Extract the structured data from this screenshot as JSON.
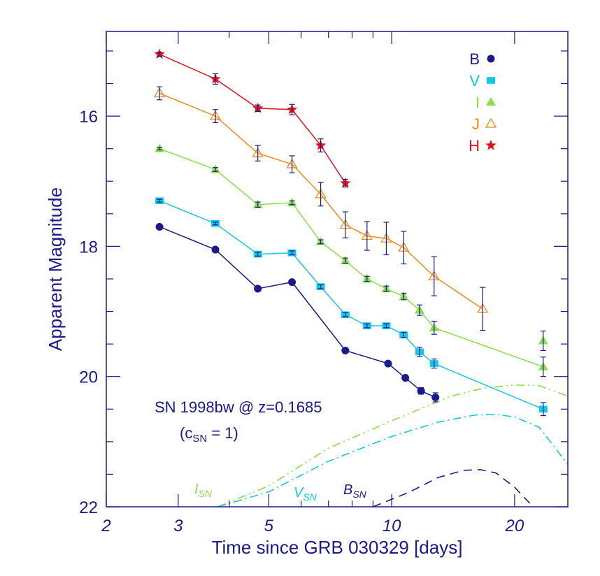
{
  "chart_data": {
    "type": "scatter",
    "title": "",
    "xlabel": "Time since GRB 030329 [days]",
    "ylabel": "Apparent Magnitude",
    "x_scale": "log",
    "xlim": [
      2,
      27
    ],
    "ylim": [
      22,
      14.7
    ],
    "y_inverted": true,
    "x_ticks": [
      2,
      3,
      5,
      10,
      20
    ],
    "x_tick_labels": [
      "2",
      "3",
      "5",
      "10",
      "20"
    ],
    "y_ticks": [
      16,
      18,
      20,
      22
    ],
    "y_tick_labels": [
      "16",
      "18",
      "20",
      "22"
    ],
    "legend_position": "top-right",
    "colors": {
      "axis": "#1a1a8c",
      "B": "#1a1a8c",
      "V": "#12c8e6",
      "I": "#88e048",
      "J": "#f28a1e",
      "H": "#e3101a"
    },
    "series": [
      {
        "name": "B",
        "marker": "circle",
        "color": "#1a1a8c",
        "x": [
          2.7,
          3.7,
          4.7,
          5.7,
          7.7,
          9.8,
          10.8,
          11.8,
          12.8
        ],
        "y": [
          17.7,
          18.05,
          18.65,
          18.55,
          19.6,
          19.8,
          20.02,
          20.22,
          20.32
        ],
        "err": [
          0.0,
          0.0,
          0.0,
          0.0,
          0.0,
          0.0,
          0.0,
          0.05,
          0.07
        ]
      },
      {
        "name": "V",
        "marker": "square",
        "color": "#12c8e6",
        "x": [
          2.7,
          3.7,
          4.7,
          5.7,
          6.7,
          7.7,
          8.7,
          9.7,
          10.7,
          11.7,
          12.7,
          23.5
        ],
        "y": [
          17.3,
          17.65,
          18.12,
          18.1,
          18.62,
          19.05,
          19.22,
          19.22,
          19.36,
          19.62,
          19.8,
          20.5
        ],
        "err": [
          0.02,
          0.02,
          0.03,
          0.03,
          0.03,
          0.03,
          0.03,
          0.03,
          0.04,
          0.07,
          0.07,
          0.1
        ]
      },
      {
        "name": "I",
        "marker": "triangle",
        "color": "#88e048",
        "x": [
          2.7,
          3.7,
          4.7,
          5.7,
          6.7,
          7.7,
          8.7,
          9.7,
          10.7,
          11.7,
          12.7,
          23.5
        ],
        "y": [
          16.5,
          16.82,
          17.36,
          17.33,
          17.93,
          18.22,
          18.5,
          18.65,
          18.77,
          18.98,
          19.25,
          19.85
        ],
        "err": [
          0.02,
          0.03,
          0.04,
          0.03,
          0.03,
          0.04,
          0.04,
          0.04,
          0.05,
          0.08,
          0.1,
          0.15
        ]
      },
      {
        "name": "J",
        "marker": "open-triangle",
        "color": "#f28a1e",
        "x": [
          2.7,
          3.7,
          4.7,
          5.7,
          6.7,
          7.7,
          8.7,
          9.7,
          10.7,
          12.7,
          16.7
        ],
        "y": [
          15.65,
          16.0,
          16.57,
          16.74,
          17.2,
          17.67,
          17.84,
          17.88,
          18.02,
          18.46,
          18.96
        ],
        "err": [
          0.1,
          0.1,
          0.12,
          0.13,
          0.18,
          0.2,
          0.22,
          0.25,
          0.25,
          0.3,
          0.33
        ]
      },
      {
        "name": "H",
        "marker": "star",
        "color": "#e3101a",
        "x": [
          2.7,
          3.7,
          4.7,
          5.7,
          6.7,
          7.7
        ],
        "y": [
          15.05,
          15.43,
          15.88,
          15.9,
          16.45,
          17.03
        ],
        "err": [
          0.03,
          0.08,
          0.05,
          0.08,
          0.1,
          0.06
        ]
      }
    ],
    "extra_points": [
      {
        "series": "I",
        "x": 23.5,
        "y": 19.45,
        "err": 0.15
      }
    ],
    "sn_curves": [
      {
        "name": "I_SN",
        "label": "I",
        "sub": "SN",
        "style": "dash-dot-dot",
        "color": "#88e048",
        "x": [
          3.75,
          5,
          7,
          10,
          14,
          17,
          20,
          23,
          27
        ],
        "y": [
          22.0,
          21.68,
          21.1,
          20.68,
          20.3,
          20.17,
          20.13,
          20.14,
          20.3
        ]
      },
      {
        "name": "V_SN",
        "label": "V",
        "sub": "SN",
        "style": "dash-dot",
        "color": "#12c8e6",
        "x": [
          3.75,
          5,
          7,
          10,
          13,
          16,
          18,
          20,
          23,
          27
        ],
        "y": [
          22.0,
          21.77,
          21.3,
          20.92,
          20.7,
          20.59,
          20.58,
          20.62,
          20.78,
          21.35
        ]
      },
      {
        "name": "B_SN",
        "label": "B",
        "sub": "SN",
        "style": "dashed",
        "color": "#1a1a8c",
        "x": [
          9.0,
          11,
          13,
          15,
          16.5,
          18,
          20,
          22.2
        ],
        "y": [
          22.0,
          21.78,
          21.55,
          21.44,
          21.43,
          21.48,
          21.7,
          22.0
        ]
      }
    ],
    "annotations": {
      "sn_line1": "SN 1998bw @ z=0.1685",
      "sn_line2_open": "(c",
      "sn_line2_sub": "SN",
      "sn_line2_close": " = 1)"
    }
  }
}
